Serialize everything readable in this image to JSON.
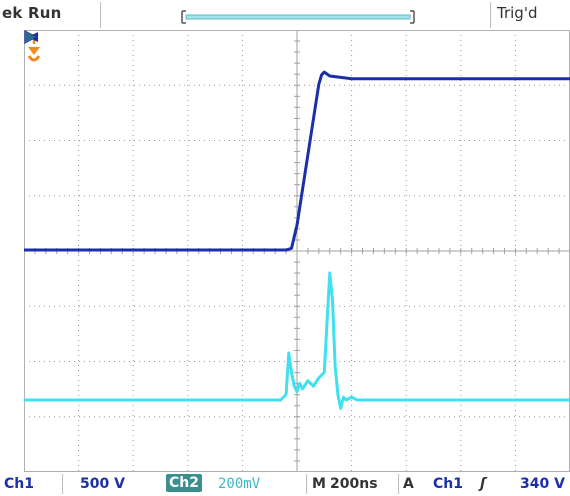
{
  "status": {
    "run_label": "ek Run",
    "trig_label": "Trig'd"
  },
  "markers": {
    "trigger_position_letter": "T"
  },
  "readout": {
    "ch1_name": "Ch1",
    "ch1_scale": "500 V",
    "ch2_name": "Ch2",
    "ch2_scale": "200mV",
    "time_prefix": "M",
    "time_scale": "200ns",
    "trigger_mode": "A",
    "trigger_source": "Ch1",
    "trigger_slope": "ʃ",
    "trigger_level": "340 V"
  },
  "colors": {
    "ch1": "#1a2fa8",
    "ch2": "#3fe0ef",
    "grid": "#9a9a9a",
    "trigger_marker": "#f08a1c"
  },
  "chart_data": {
    "type": "line",
    "title": "",
    "xlabel": "",
    "ylabel": "",
    "x_divisions": 10,
    "y_divisions": 8,
    "grid": true,
    "time_per_division_ns": 200,
    "series": [
      {
        "name": "Ch1",
        "volts_per_division": 500,
        "x_div": [
          -5,
          -0.2,
          -0.1,
          0,
          0.4,
          0.45,
          0.5,
          0.6,
          1,
          5
        ],
        "y_div": [
          0,
          0,
          0.03,
          0.45,
          3.0,
          3.17,
          3.22,
          3.15,
          3.1,
          3.1
        ]
      },
      {
        "name": "Ch2",
        "volts_per_division": 0.2,
        "x_div": [
          -5,
          -0.3,
          -0.2,
          -0.15,
          -0.1,
          -0.05,
          0,
          0.05,
          0.1,
          0.2,
          0.3,
          0.4,
          0.5,
          0.55,
          0.6,
          0.65,
          0.7,
          0.75,
          0.8,
          0.85,
          0.9,
          1.0,
          1.1,
          5
        ],
        "y_div": [
          0,
          0,
          0.1,
          0.85,
          0.5,
          0.25,
          0.15,
          0.3,
          0.2,
          0.35,
          0.25,
          0.4,
          0.5,
          1.4,
          2.3,
          1.8,
          0.6,
          0.1,
          -0.15,
          0.05,
          0,
          0.05,
          0,
          0
        ]
      }
    ]
  }
}
